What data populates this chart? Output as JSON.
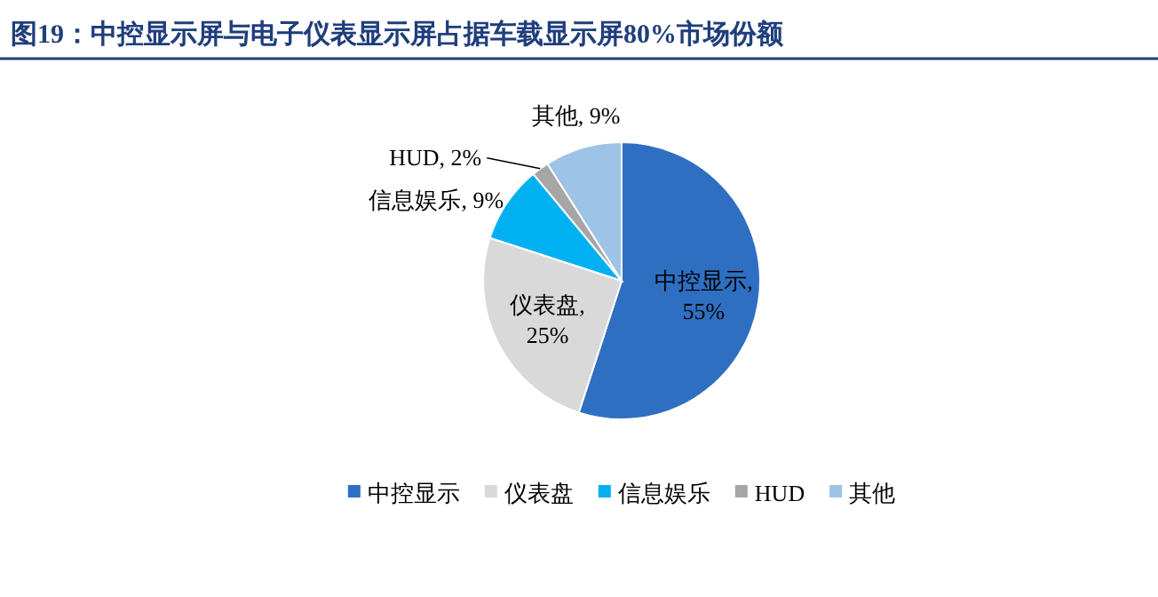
{
  "chart_data": {
    "type": "pie",
    "title": "图19：中控显示屏与电子仪表显示屏占据车载显示屏80%市场份额",
    "categories": [
      "中控显示",
      "仪表盘",
      "信息娱乐",
      "HUD",
      "其他"
    ],
    "values": [
      55,
      25,
      9,
      2,
      9
    ],
    "colors": [
      "#2f6fc2",
      "#d9d9d9",
      "#00b0f0",
      "#a6a6a6",
      "#9dc3e6"
    ],
    "value_labels": [
      "中控显示, 55%",
      "仪表盘, 25%",
      "信息娱乐, 9%",
      "HUD, 2%",
      "其他, 9%"
    ],
    "legend": "bottom"
  }
}
